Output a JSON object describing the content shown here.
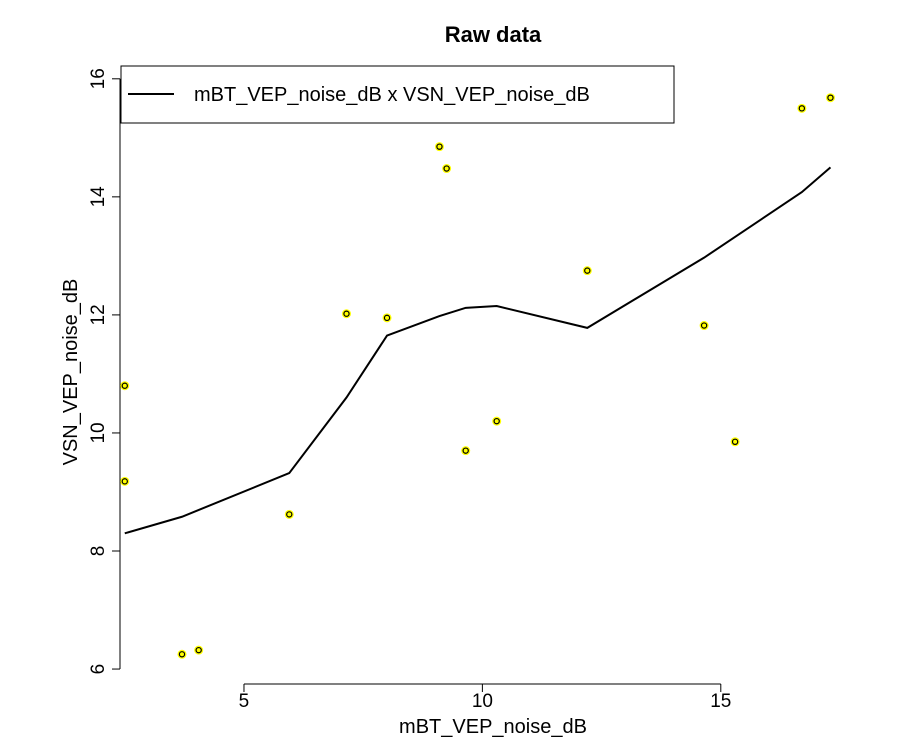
{
  "chart_data": {
    "type": "scatter",
    "title": "Raw data",
    "xlabel": "mBT_VEP_noise_dB",
    "ylabel": "VSN_VEP_noise_dB",
    "xlim": [
      2.4,
      17.5
    ],
    "ylim": [
      5.95,
      16.2
    ],
    "xticks": [
      5,
      10,
      15
    ],
    "yticks": [
      6,
      8,
      10,
      12,
      14,
      16
    ],
    "legend": {
      "position": "top-left",
      "entries": [
        "mBT_VEP_noise_dB x VSN_VEP_noise_dB"
      ]
    },
    "grid": false,
    "points": [
      [
        2.5,
        10.8
      ],
      [
        2.5,
        9.18
      ],
      [
        3.7,
        6.25
      ],
      [
        4.05,
        6.32
      ],
      [
        5.95,
        8.62
      ],
      [
        7.15,
        12.02
      ],
      [
        8.0,
        11.95
      ],
      [
        9.1,
        14.85
      ],
      [
        9.25,
        14.48
      ],
      [
        9.65,
        9.7
      ],
      [
        10.3,
        10.2
      ],
      [
        12.2,
        12.75
      ],
      [
        14.65,
        11.82
      ],
      [
        15.3,
        9.85
      ],
      [
        16.7,
        15.5
      ],
      [
        17.3,
        15.68
      ]
    ],
    "smooth_line": [
      [
        2.5,
        8.3
      ],
      [
        3.7,
        8.58
      ],
      [
        5.95,
        9.32
      ],
      [
        7.15,
        10.6
      ],
      [
        8.0,
        11.65
      ],
      [
        9.1,
        11.98
      ],
      [
        9.65,
        12.12
      ],
      [
        10.3,
        12.15
      ],
      [
        12.2,
        11.78
      ],
      [
        14.65,
        12.97
      ],
      [
        16.7,
        14.08
      ],
      [
        17.3,
        14.5
      ]
    ],
    "colors": {
      "marker_fill": "#ffff00",
      "marker_stroke": "#000000",
      "line": "#000000"
    }
  }
}
